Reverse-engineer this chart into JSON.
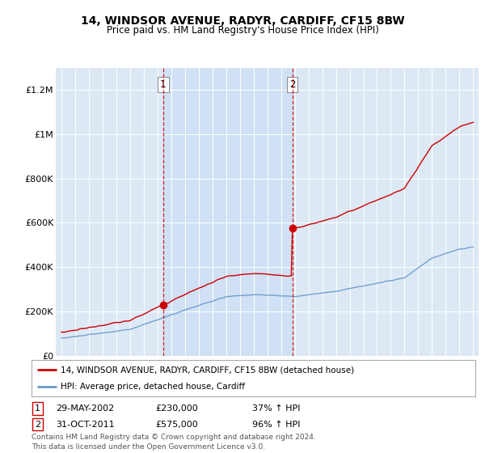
{
  "title": "14, WINDSOR AVENUE, RADYR, CARDIFF, CF15 8BW",
  "subtitle": "Price paid vs. HM Land Registry's House Price Index (HPI)",
  "title_fontsize": 10,
  "subtitle_fontsize": 8.5,
  "bg_color": "#dce9f5",
  "fig_bg_color": "#ffffff",
  "red_color": "#cc0000",
  "blue_color": "#6699cc",
  "ylim": [
    0,
    1300000
  ],
  "yticks": [
    0,
    200000,
    400000,
    600000,
    800000,
    1000000,
    1200000
  ],
  "ytick_labels": [
    "£0",
    "£200K",
    "£400K",
    "£600K",
    "£800K",
    "£1M",
    "£1.2M"
  ],
  "purchase1_year": 2002.42,
  "purchase1_price": 230000,
  "purchase1_label": "1",
  "purchase2_year": 2011.83,
  "purchase2_price": 575000,
  "purchase2_label": "2",
  "legend_line1": "14, WINDSOR AVENUE, RADYR, CARDIFF, CF15 8BW (detached house)",
  "legend_line2": "HPI: Average price, detached house, Cardiff",
  "annotation1_date": "29-MAY-2002",
  "annotation1_price": "£230,000",
  "annotation1_hpi": "37% ↑ HPI",
  "annotation2_date": "31-OCT-2011",
  "annotation2_price": "£575,000",
  "annotation2_hpi": "96% ↑ HPI",
  "footer": "Contains HM Land Registry data © Crown copyright and database right 2024.\nThis data is licensed under the Open Government Licence v3.0.",
  "shade_color": "#ccdff5",
  "grid_color": "#ffffff"
}
